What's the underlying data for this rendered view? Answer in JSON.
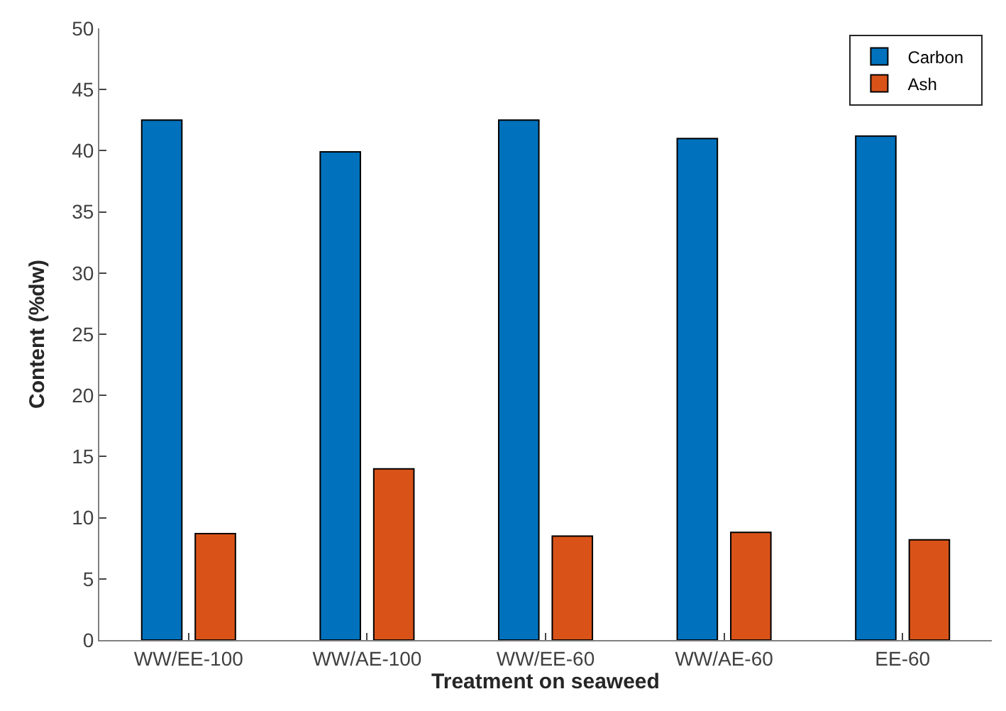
{
  "chart_data": {
    "type": "bar",
    "xlabel": "Treatment on seaweed",
    "ylabel": "Content (%dw)",
    "categories": [
      "WW/EE-100",
      "WW/AE-100",
      "WW/EE-60",
      "WW/AE-60",
      "EE-60"
    ],
    "series": [
      {
        "name": "Carbon",
        "color": "#0072bd",
        "values": [
          42.5,
          39.9,
          42.5,
          41.0,
          41.2
        ]
      },
      {
        "name": "Ash",
        "color": "#d95319",
        "values": [
          8.7,
          14.0,
          8.5,
          8.8,
          8.2
        ]
      }
    ],
    "ylim": [
      0,
      50
    ],
    "yticks": [
      0,
      5,
      10,
      15,
      20,
      25,
      30,
      35,
      40,
      45,
      50
    ],
    "legend": "top right"
  }
}
